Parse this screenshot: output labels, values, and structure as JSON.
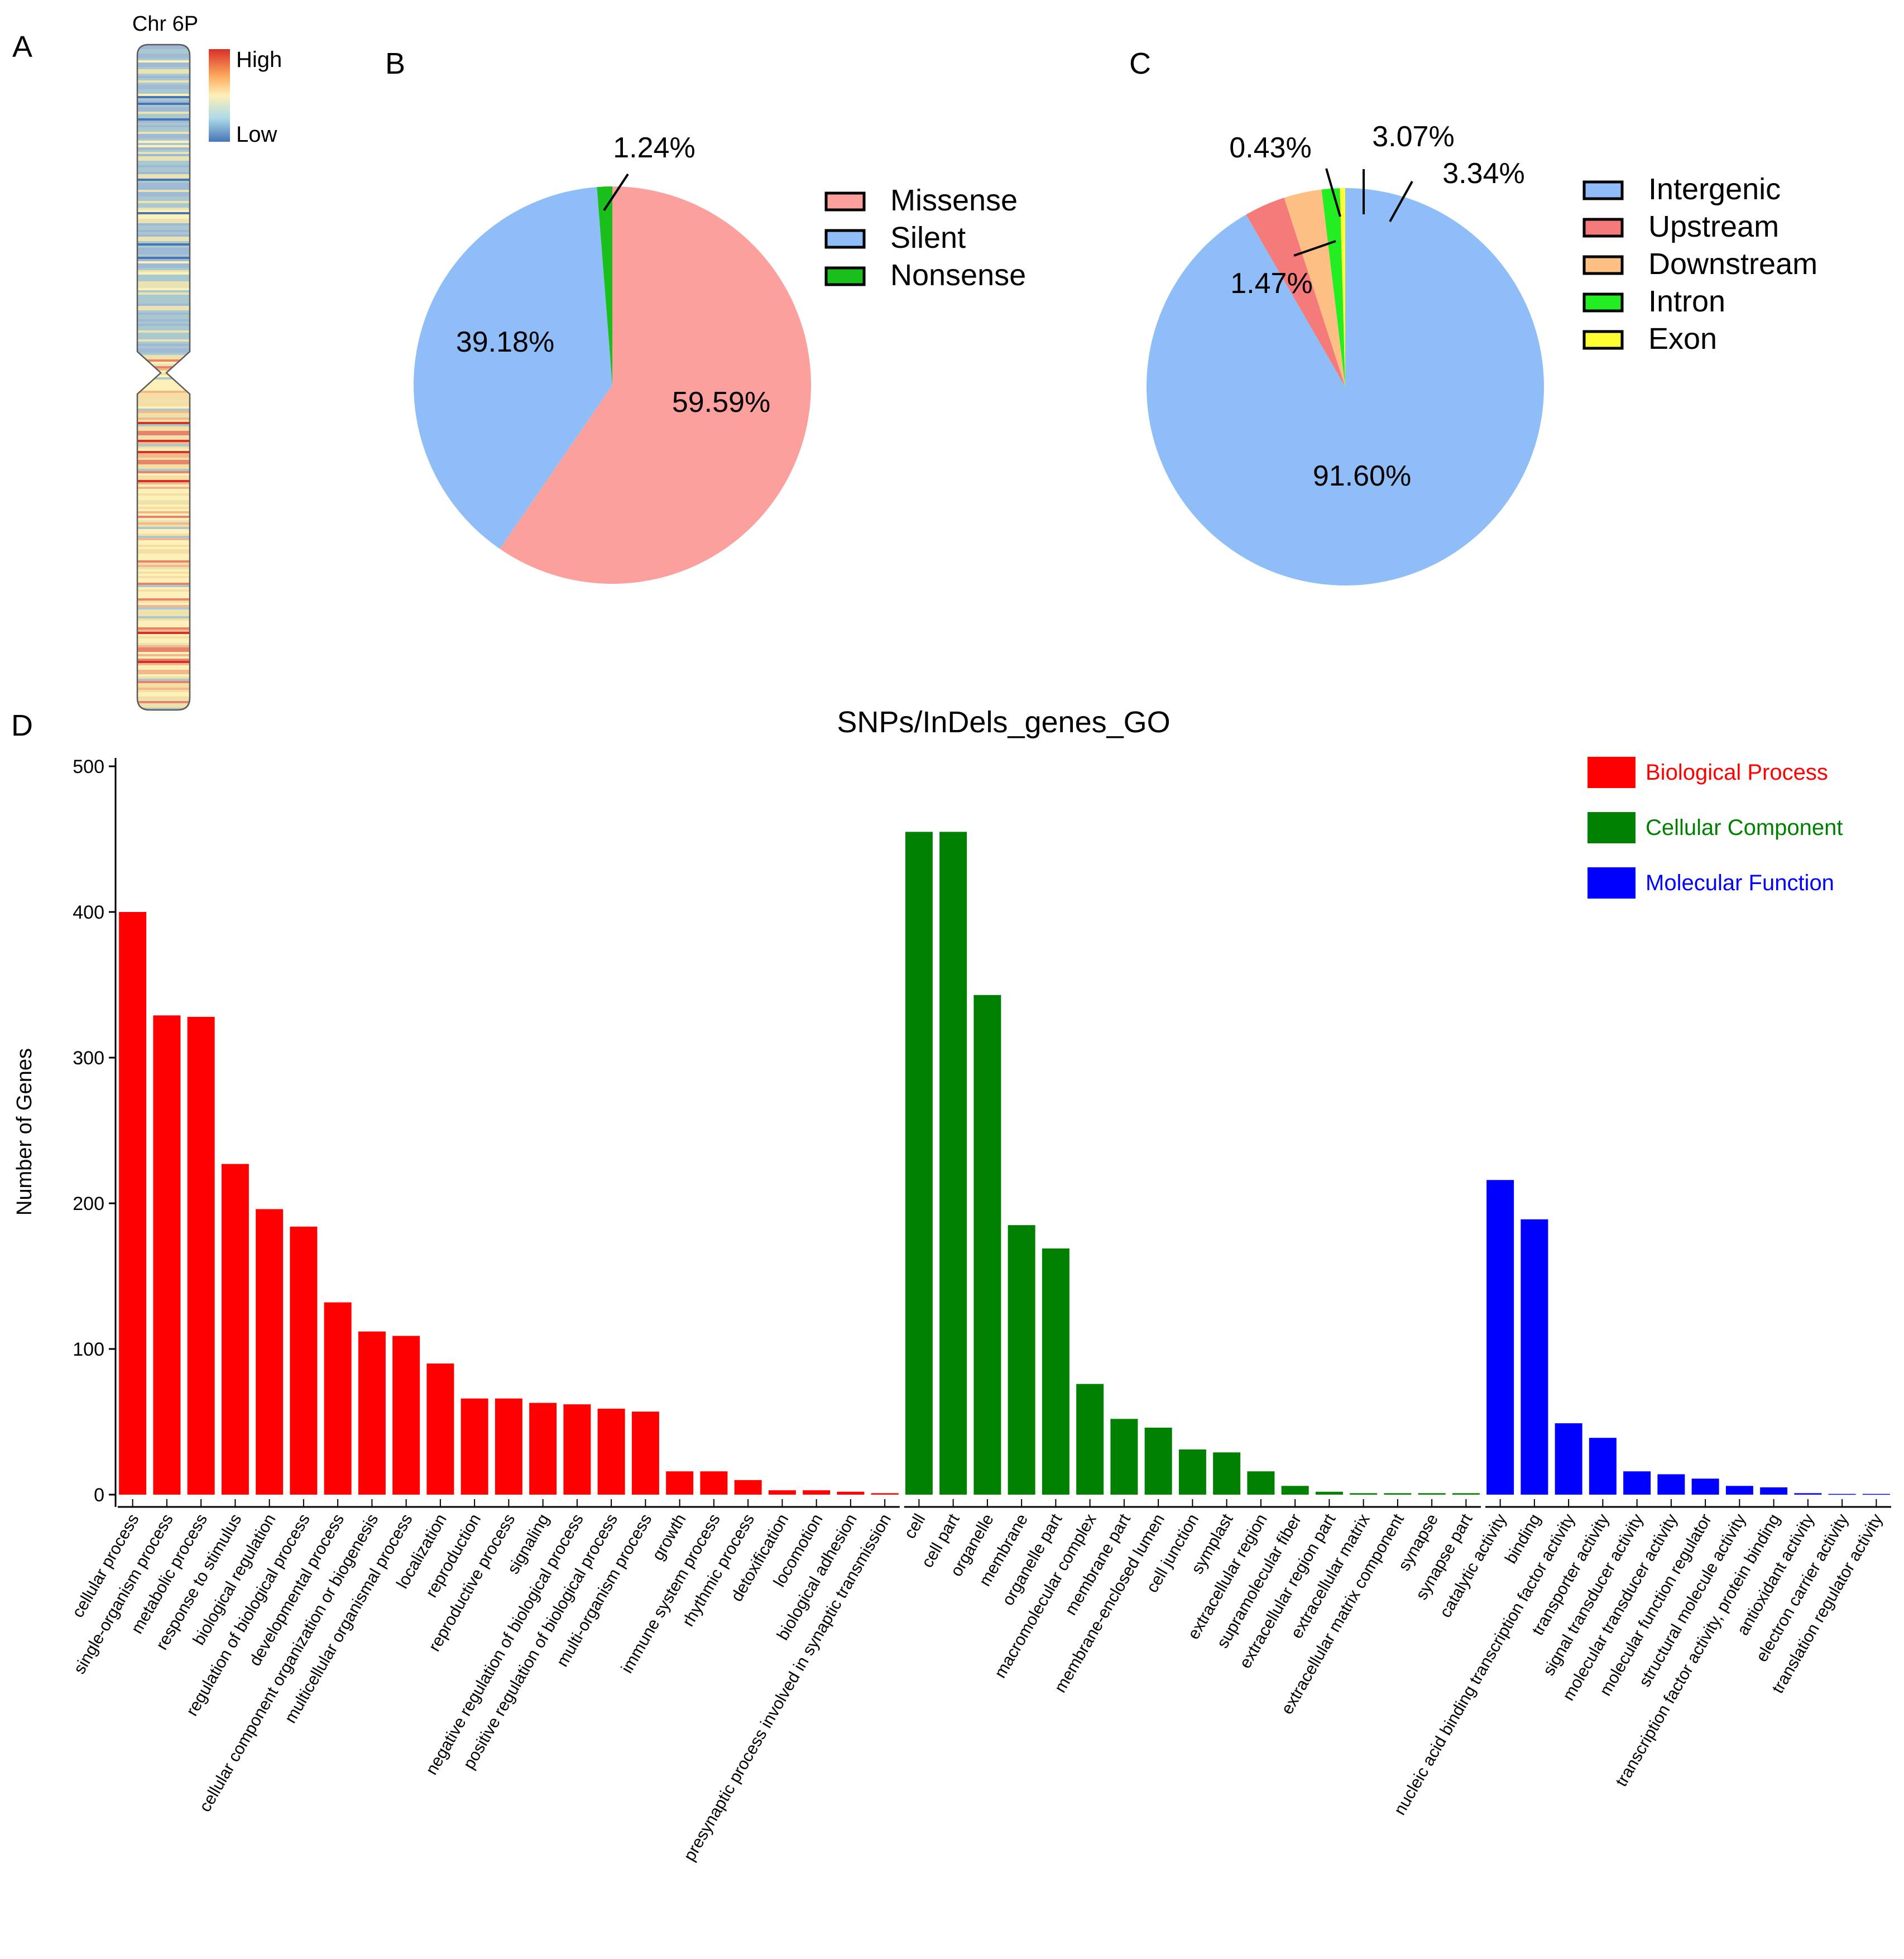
{
  "panels": {
    "a": "A",
    "b": "B",
    "c": "C",
    "d": "D"
  },
  "chromosome": {
    "title": "Chr 6P",
    "legend_high": "High",
    "legend_low": "Low",
    "colors": {
      "high": "#d73027",
      "mid": "#fdf0b8",
      "low": "#4575b4",
      "body": "#a9c9cf"
    }
  },
  "chart_data": [
    {
      "id": "b",
      "type": "pie",
      "legend": [
        "Missense",
        "Silent",
        "Nonsense"
      ],
      "slices": [
        {
          "name": "Missense",
          "value": 59.59,
          "label": "59.59%",
          "color": "#fba09d"
        },
        {
          "name": "Silent",
          "value": 39.18,
          "label": "39.18%",
          "color": "#8fbdf7"
        },
        {
          "name": "Nonsense",
          "value": 1.24,
          "label": "1.24%",
          "color": "#1bbf1b"
        }
      ]
    },
    {
      "id": "c",
      "type": "pie",
      "legend": [
        "Intergenic",
        "Upstream",
        "Downstream",
        "Intron",
        "Exon"
      ],
      "slices": [
        {
          "name": "Intergenic",
          "value": 91.6,
          "label": "91.60%",
          "color": "#8fbdf7"
        },
        {
          "name": "Upstream",
          "value": 3.34,
          "label": "3.34%",
          "color": "#f57a7a"
        },
        {
          "name": "Downstream",
          "value": 3.07,
          "label": "3.07%",
          "color": "#fdbf83"
        },
        {
          "name": "Intron",
          "value": 1.47,
          "label": "1.47%",
          "color": "#22ee22"
        },
        {
          "name": "Exon",
          "value": 0.43,
          "label": "0.43%",
          "color": "#ffff33"
        }
      ]
    },
    {
      "id": "d",
      "type": "bar",
      "title": "SNPs/InDels_genes_GO",
      "ylabel": "Number of Genes",
      "xlabel": "",
      "ylim": [
        0,
        500
      ],
      "yticks": [
        "0",
        "100",
        "200",
        "300",
        "400",
        "500"
      ],
      "legend": [
        {
          "name": "Biological Process",
          "color": "#ff0000"
        },
        {
          "name": "Cellular Component",
          "color": "#008000"
        },
        {
          "name": "Molecular Function",
          "color": "#0000ff"
        }
      ],
      "groups": [
        {
          "name": "Biological Process",
          "color": "#ff0000",
          "categories": [
            "cellular process",
            "single-organism process",
            "metabolic process",
            "response to stimulus",
            "biological regulation",
            "regulation of biological process",
            "developmental process",
            "cellular component organization or biogenesis",
            "multicellular organismal process",
            "localization",
            "reproduction",
            "reproductive process",
            "signaling",
            "negative regulation of biological process",
            "positive regulation of biological process",
            "multi-organism process",
            "growth",
            "immune system process",
            "rhythmic process",
            "detoxification",
            "locomotion",
            "biological adhesion",
            "presynaptic process involved in synaptic transmission"
          ],
          "values": [
            400,
            329,
            328,
            227,
            196,
            184,
            132,
            112,
            109,
            90,
            66,
            66,
            63,
            62,
            59,
            57,
            16,
            16,
            10,
            3,
            3,
            2,
            1
          ]
        },
        {
          "name": "Cellular Component",
          "color": "#008000",
          "categories": [
            "cell",
            "cell part",
            "organelle",
            "membrane",
            "organelle part",
            "macromolecular complex",
            "membrane part",
            "membrane-enclosed lumen",
            "cell junction",
            "symplast",
            "extracellular region",
            "supramolecular fiber",
            "extracellular region part",
            "extracellular matrix",
            "extracellular matrix component",
            "synapse",
            "synapse part"
          ],
          "values": [
            455,
            455,
            343,
            185,
            169,
            76,
            52,
            46,
            31,
            29,
            16,
            6,
            2,
            1,
            1,
            1,
            1
          ]
        },
        {
          "name": "Molecular Function",
          "color": "#0000ff",
          "categories": [
            "catalytic activity",
            "binding",
            "nucleic acid binding transcription factor activity",
            "transporter activity",
            "signal transducer activity",
            "molecular transducer activity",
            "molecular function regulator",
            "structural molecule activity",
            "transcription factor activity, protein binding",
            "antioxidant activity",
            "electron carrier activity",
            "translation regulator activity"
          ],
          "values": [
            216,
            189,
            49,
            39,
            16,
            14,
            11,
            6,
            5,
            1,
            0.5,
            0.5
          ]
        }
      ]
    }
  ]
}
